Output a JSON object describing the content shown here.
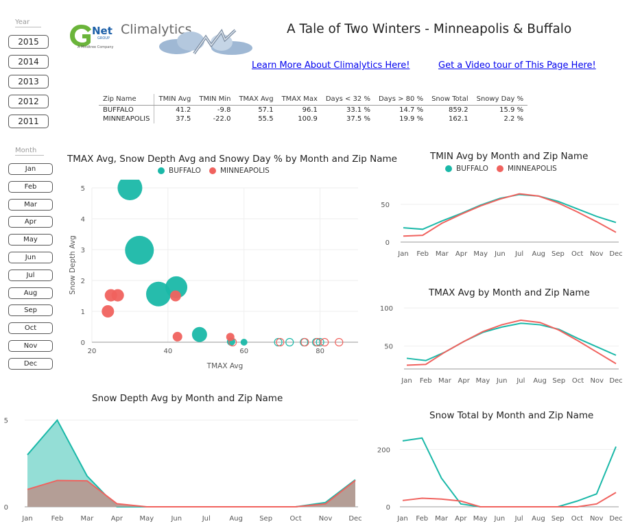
{
  "header": {
    "title": "A Tale of Two Winters - Minneapolis & Buffalo",
    "logo_brand": "Net",
    "logo_group": "GROUP",
    "logo_product": "Climalytics",
    "logo_tagline": "A Mindtree Company",
    "link_learn": "Learn More About Climalytics Here!",
    "link_video": "Get a Video tour of This Page Here!"
  },
  "colors": {
    "buffalo": "#1ab8a8",
    "minneapolis": "#f0625e"
  },
  "year_slicer": {
    "title": "Year",
    "items": [
      "2015",
      "2014",
      "2013",
      "2012",
      "2011"
    ]
  },
  "month_slicer": {
    "title": "Month",
    "items": [
      "Jan",
      "Feb",
      "Mar",
      "Apr",
      "May",
      "Jun",
      "Jul",
      "Aug",
      "Sep",
      "Oct",
      "Nov",
      "Dec"
    ]
  },
  "summary_table": {
    "headers": [
      "Zip Name",
      "TMIN Avg",
      "TMIN Min",
      "TMAX Avg",
      "TMAX Max",
      "Days < 32 %",
      "Days > 80 %",
      "Snow Total",
      "Snowy Day %"
    ],
    "rows": [
      [
        "BUFFALO",
        "41.2",
        "-9.8",
        "57.1",
        "96.1",
        "33.1 %",
        "14.7 %",
        "859.2",
        "15.9 %"
      ],
      [
        "MINNEAPOLIS",
        "37.5",
        "-22.0",
        "55.5",
        "100.9",
        "37.5 %",
        "19.9 %",
        "162.1",
        "2.2 %"
      ]
    ]
  },
  "chart_data": [
    {
      "id": "scatter",
      "type": "scatter",
      "title": "TMAX Avg, Snow Depth Avg and Snowy Day % by Month and Zip Name",
      "xlabel": "TMAX Avg",
      "ylabel": "Snow Depth Avg",
      "xlim": [
        20,
        90
      ],
      "ylim": [
        0,
        5
      ],
      "xticks": [
        20,
        40,
        60,
        80
      ],
      "yticks": [
        0,
        1,
        2,
        3,
        4,
        5
      ],
      "legend": [
        "BUFFALO",
        "MINNEAPOLIS"
      ],
      "series": [
        {
          "name": "BUFFALO",
          "points": [
            {
              "x": 30,
              "y": 5.0,
              "size": 18
            },
            {
              "x": 32.5,
              "y": 2.98,
              "size": 21
            },
            {
              "x": 37.5,
              "y": 1.56,
              "size": 18
            },
            {
              "x": 42.2,
              "y": 1.78,
              "size": 16
            },
            {
              "x": 48.3,
              "y": 0.25,
              "size": 11
            },
            {
              "x": 56.6,
              "y": 0.02,
              "size": 6
            },
            {
              "x": 60,
              "y": 0.0,
              "size": 5
            },
            {
              "x": 69,
              "y": 0.0,
              "size": 0
            },
            {
              "x": 72,
              "y": 0.0,
              "size": 0
            },
            {
              "x": 75.8,
              "y": 0.0,
              "size": 0
            },
            {
              "x": 79,
              "y": 0.0,
              "size": 0
            },
            {
              "x": 80,
              "y": 0.0,
              "size": 0
            }
          ]
        },
        {
          "name": "MINNEAPOLIS",
          "points": [
            {
              "x": 24.2,
              "y": 1.0,
              "size": 9
            },
            {
              "x": 25,
              "y": 1.52,
              "size": 9
            },
            {
              "x": 26.8,
              "y": 1.52,
              "size": 9
            },
            {
              "x": 42,
              "y": 1.5,
              "size": 8
            },
            {
              "x": 42.5,
              "y": 0.18,
              "size": 7
            },
            {
              "x": 56.4,
              "y": 0.17,
              "size": 6
            },
            {
              "x": 57,
              "y": 0.0,
              "size": 0
            },
            {
              "x": 69.5,
              "y": 0.0,
              "size": 0
            },
            {
              "x": 76,
              "y": 0.0,
              "size": 0
            },
            {
              "x": 79.3,
              "y": 0.0,
              "size": 0
            },
            {
              "x": 81.2,
              "y": 0.0,
              "size": 0
            },
            {
              "x": 85,
              "y": 0.0,
              "size": 0
            }
          ]
        }
      ]
    },
    {
      "id": "tmin",
      "type": "line",
      "title": "TMIN Avg by Month and Zip Name",
      "legend": [
        "BUFFALO",
        "MINNEAPOLIS"
      ],
      "categories": [
        "Jan",
        "Feb",
        "Mar",
        "Apr",
        "May",
        "Jun",
        "Jul",
        "Aug",
        "Sep",
        "Oct",
        "Nov",
        "Dec"
      ],
      "ylim": [
        0,
        70
      ],
      "yticks": [
        0,
        50
      ],
      "series": [
        {
          "name": "BUFFALO",
          "values": [
            19,
            17,
            28,
            38,
            49,
            58,
            63,
            61,
            54,
            44,
            34,
            26
          ]
        },
        {
          "name": "MINNEAPOLIS",
          "values": [
            8,
            9,
            25,
            37,
            48,
            57,
            64,
            61,
            52,
            40,
            27,
            13
          ]
        }
      ]
    },
    {
      "id": "tmax",
      "type": "line",
      "title": "TMAX Avg by Month and Zip Name",
      "categories": [
        "Jan",
        "Feb",
        "Mar",
        "Apr",
        "May",
        "Jun",
        "Jul",
        "Aug",
        "Sep",
        "Oct",
        "Nov",
        "Dec"
      ],
      "ylim": [
        20,
        110
      ],
      "yticks": [
        50,
        100
      ],
      "series": [
        {
          "name": "BUFFALO",
          "values": [
            34,
            31,
            42,
            56,
            68,
            75,
            80,
            78,
            72,
            60,
            49,
            38
          ]
        },
        {
          "name": "MINNEAPOLIS",
          "values": [
            25,
            26,
            42,
            56,
            69,
            78,
            84,
            81,
            71,
            57,
            42,
            27
          ]
        }
      ]
    },
    {
      "id": "snowdepth",
      "type": "area",
      "title": "Snow Depth Avg by Month and Zip Name",
      "categories": [
        "Jan",
        "Feb",
        "Mar",
        "Apr",
        "May",
        "Jun",
        "Jul",
        "Aug",
        "Sep",
        "Oct",
        "Nov",
        "Dec"
      ],
      "ylim": [
        0,
        5.5
      ],
      "yticks": [
        0,
        5
      ],
      "series": [
        {
          "name": "BUFFALO",
          "values": [
            3.0,
            5.0,
            1.78,
            0.0,
            0.0,
            0.0,
            0.0,
            0.0,
            0.0,
            0.0,
            0.25,
            1.56
          ]
        },
        {
          "name": "MINNEAPOLIS",
          "values": [
            1.0,
            1.52,
            1.5,
            0.18,
            0.0,
            0.0,
            0.0,
            0.0,
            0.0,
            0.0,
            0.17,
            1.52
          ]
        }
      ]
    },
    {
      "id": "snowtotal",
      "type": "line",
      "title": "Snow Total by Month and Zip Name",
      "categories": [
        "Jan",
        "Feb",
        "Mar",
        "Apr",
        "May",
        "Jun",
        "Jul",
        "Aug",
        "Sep",
        "Oct",
        "Nov",
        "Dec"
      ],
      "ylim": [
        0,
        280
      ],
      "yticks": [
        0,
        200
      ],
      "series": [
        {
          "name": "BUFFALO",
          "values": [
            230,
            240,
            100,
            10,
            0,
            0,
            0,
            0,
            0,
            20,
            45,
            210
          ]
        },
        {
          "name": "MINNEAPOLIS",
          "values": [
            22,
            30,
            27,
            20,
            0,
            0,
            0,
            0,
            0,
            0,
            10,
            50
          ]
        }
      ]
    }
  ]
}
